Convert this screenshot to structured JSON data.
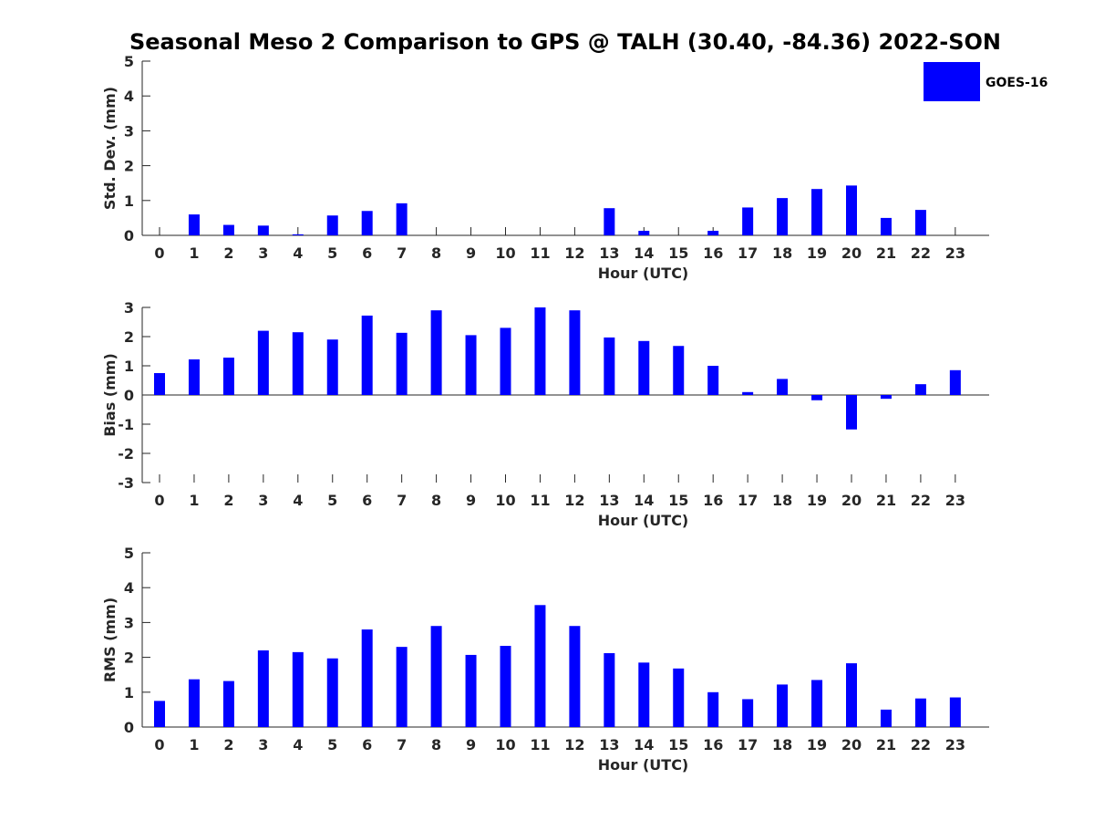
{
  "chart_data": {
    "type": "bar",
    "title": "Seasonal Meso 2 Comparison to GPS @ TALH (30.40, -84.36) 2022-SON",
    "legend": {
      "entries": [
        "GOES-16"
      ],
      "placement": "top-right"
    },
    "bar_color": "#0000ff",
    "categories": [
      "0",
      "1",
      "2",
      "3",
      "4",
      "5",
      "6",
      "7",
      "8",
      "9",
      "10",
      "11",
      "12",
      "13",
      "14",
      "15",
      "16",
      "17",
      "18",
      "19",
      "20",
      "21",
      "22",
      "23"
    ],
    "panels": [
      {
        "id": "std",
        "ylabel": "Std. Dev. (mm)",
        "xlabel": "Hour (UTC)",
        "ylim": [
          0,
          5
        ],
        "yticks": [
          "0",
          "1",
          "2",
          "3",
          "4",
          "5"
        ],
        "series": [
          {
            "name": "GOES-16",
            "values": [
              null,
              0.6,
              0.3,
              0.28,
              0.03,
              0.57,
              0.7,
              0.92,
              null,
              null,
              null,
              null,
              null,
              0.78,
              0.13,
              null,
              0.13,
              0.8,
              1.07,
              1.33,
              1.43,
              0.5,
              0.73,
              null
            ]
          }
        ]
      },
      {
        "id": "bias",
        "ylabel": "Bias (mm)",
        "xlabel": "Hour (UTC)",
        "ylim": [
          -3,
          3
        ],
        "yticks": [
          "-3",
          "-2",
          "-1",
          "0",
          "1",
          "2",
          "3"
        ],
        "series": [
          {
            "name": "GOES-16",
            "values": [
              0.75,
              1.22,
              1.28,
              2.2,
              2.15,
              1.9,
              2.72,
              2.13,
              2.9,
              2.05,
              2.3,
              3.0,
              2.9,
              1.97,
              1.85,
              1.68,
              1.0,
              0.1,
              0.55,
              -0.18,
              -1.18,
              -0.13,
              0.37,
              0.85
            ]
          }
        ]
      },
      {
        "id": "rms",
        "ylabel": "RMS (mm)",
        "xlabel": "Hour (UTC)",
        "ylim": [
          0,
          5
        ],
        "yticks": [
          "0",
          "1",
          "2",
          "3",
          "4",
          "5"
        ],
        "series": [
          {
            "name": "GOES-16",
            "values": [
              0.75,
              1.37,
              1.32,
              2.2,
              2.15,
              1.97,
              2.8,
              2.3,
              2.9,
              2.07,
              2.33,
              3.5,
              2.9,
              2.12,
              1.85,
              1.68,
              1.0,
              0.8,
              1.22,
              1.35,
              1.83,
              0.5,
              0.82,
              0.85
            ]
          }
        ]
      }
    ]
  }
}
